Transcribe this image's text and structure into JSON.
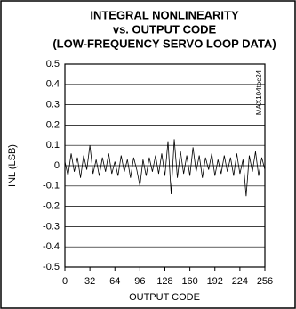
{
  "chart_data": {
    "type": "line",
    "title": [
      "INTEGRAL NONLINEARITY",
      "vs. OUTPUT CODE",
      "(LOW-FREQUENCY SERVO LOOP DATA)"
    ],
    "xlabel": "OUTPUT CODE",
    "ylabel": "INL (LSB)",
    "annotation": "MAX104toc24",
    "color": "#000000",
    "grid": true,
    "x": [
      0,
      4,
      8,
      12,
      16,
      20,
      24,
      28,
      32,
      36,
      40,
      44,
      48,
      52,
      56,
      60,
      64,
      68,
      72,
      76,
      80,
      84,
      88,
      92,
      96,
      100,
      104,
      108,
      112,
      116,
      120,
      124,
      128,
      132,
      136,
      140,
      144,
      148,
      152,
      156,
      160,
      164,
      168,
      172,
      176,
      180,
      184,
      188,
      192,
      196,
      200,
      204,
      208,
      212,
      216,
      220,
      224,
      228,
      232,
      236,
      240,
      244,
      248,
      252,
      256
    ],
    "values": [
      0.02,
      -0.05,
      0.06,
      -0.03,
      0.04,
      -0.06,
      0.05,
      -0.02,
      0.1,
      -0.04,
      0.03,
      -0.05,
      0.04,
      -0.03,
      0.06,
      -0.04,
      0.02,
      -0.05,
      0.05,
      -0.03,
      0.03,
      -0.06,
      0.04,
      -0.02,
      -0.1,
      0.03,
      -0.05,
      0.04,
      -0.03,
      0.05,
      -0.04,
      0.06,
      -0.05,
      0.12,
      -0.14,
      0.13,
      -0.06,
      0.07,
      -0.04,
      0.05,
      -0.05,
      0.09,
      -0.03,
      0.05,
      -0.06,
      0.04,
      -0.02,
      0.06,
      -0.05,
      0.03,
      -0.04,
      0.05,
      -0.03,
      0.04,
      -0.05,
      0.06,
      -0.04,
      0.03,
      -0.15,
      0.05,
      -0.03,
      0.07,
      -0.05,
      0.04,
      -0.02
    ],
    "xlim": [
      0,
      256
    ],
    "xticks": [
      0,
      32,
      64,
      96,
      128,
      160,
      192,
      224,
      256
    ],
    "ylim": [
      -0.5,
      0.5
    ],
    "yticks": [
      0.5,
      0.4,
      0.3,
      0.2,
      0.1,
      0,
      -0.1,
      -0.2,
      -0.3,
      -0.4,
      -0.5
    ]
  }
}
